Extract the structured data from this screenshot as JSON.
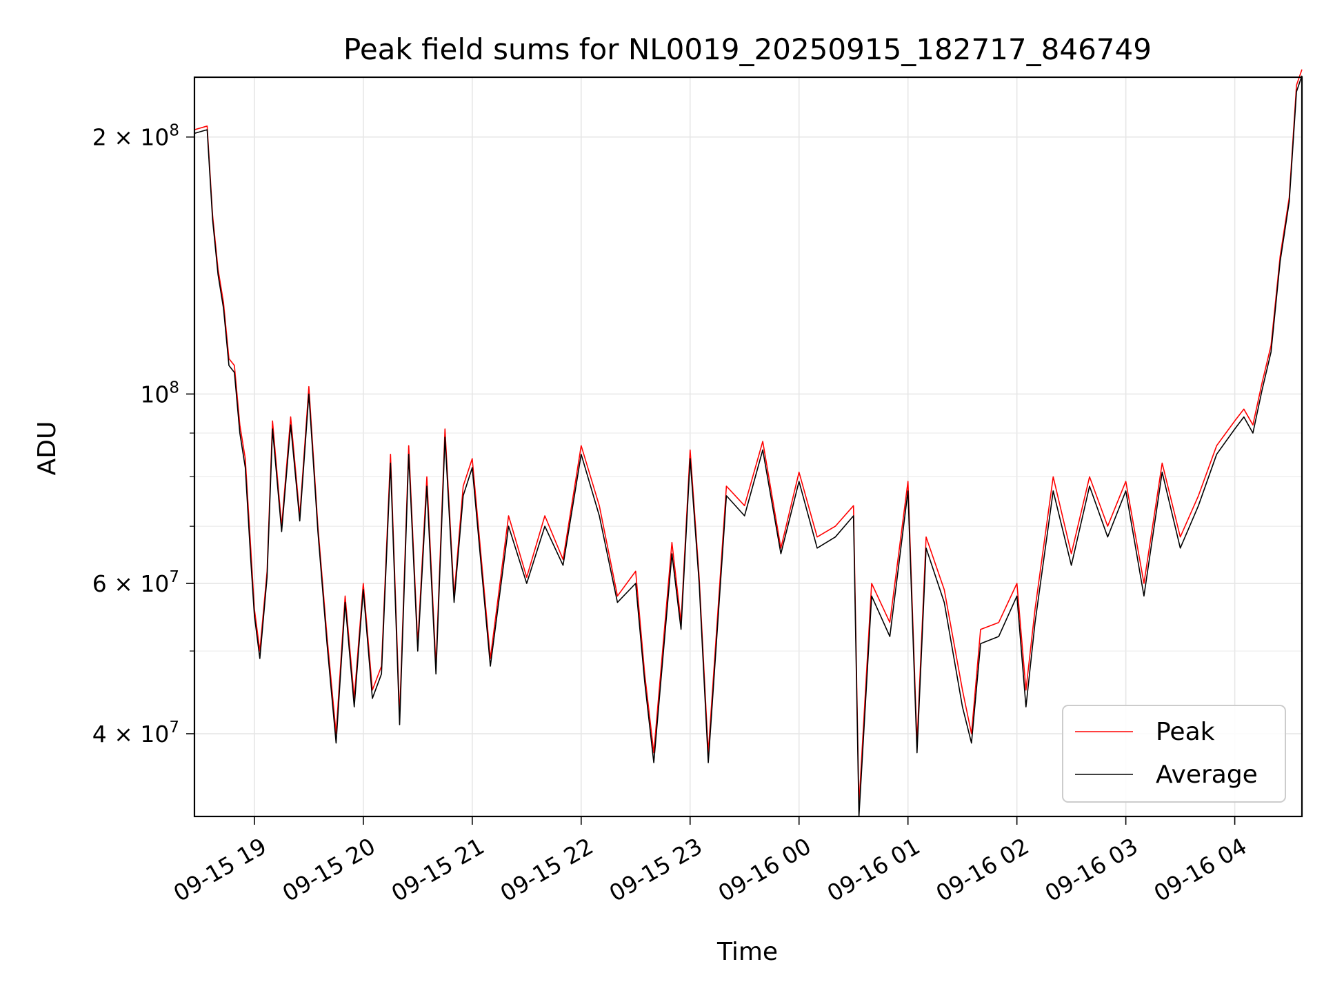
{
  "chart_data": {
    "type": "line",
    "title": "Peak field sums for NL0019_20250915_182717_846749",
    "xlabel": "Time",
    "ylabel": "ADU",
    "yscale": "log",
    "grid": true,
    "legend_position": "lower-right",
    "xlim": [
      "2025-09-15 18:27",
      "2025-09-16 04:37"
    ],
    "ylim": [
      32000000,
      235000000
    ],
    "x_ticks": [
      {
        "value": "2025-09-15 19:00",
        "label": "09-15 19"
      },
      {
        "value": "2025-09-15 20:00",
        "label": "09-15 20"
      },
      {
        "value": "2025-09-15 21:00",
        "label": "09-15 21"
      },
      {
        "value": "2025-09-15 22:00",
        "label": "09-15 22"
      },
      {
        "value": "2025-09-15 23:00",
        "label": "09-15 23"
      },
      {
        "value": "2025-09-16 00:00",
        "label": "09-16 00"
      },
      {
        "value": "2025-09-16 01:00",
        "label": "09-16 01"
      },
      {
        "value": "2025-09-16 02:00",
        "label": "09-16 02"
      },
      {
        "value": "2025-09-16 03:00",
        "label": "09-16 03"
      },
      {
        "value": "2025-09-16 04:00",
        "label": "09-16 04"
      }
    ],
    "y_ticks": [
      {
        "value": 40000000,
        "base": "4 × 10",
        "exp": "7"
      },
      {
        "value": 60000000,
        "base": "6 × 10",
        "exp": "7"
      },
      {
        "value": 100000000,
        "base": "10",
        "exp": "8"
      },
      {
        "value": 200000000,
        "base": "2 × 10",
        "exp": "8"
      }
    ],
    "y_minor_ticks": [
      50000000,
      70000000,
      80000000,
      90000000
    ],
    "series": [
      {
        "name": "Peak",
        "color": "#ff0000",
        "x": [
          "2025-09-15 18:27",
          "2025-09-15 18:34",
          "2025-09-15 18:37",
          "2025-09-15 18:40",
          "2025-09-15 18:43",
          "2025-09-15 18:46",
          "2025-09-15 18:49",
          "2025-09-15 18:52",
          "2025-09-15 18:55",
          "2025-09-15 18:58",
          "2025-09-15 19:00",
          "2025-09-15 19:03",
          "2025-09-15 19:07",
          "2025-09-15 19:10",
          "2025-09-15 19:15",
          "2025-09-15 19:20",
          "2025-09-15 19:25",
          "2025-09-15 19:30",
          "2025-09-15 19:35",
          "2025-09-15 19:40",
          "2025-09-15 19:45",
          "2025-09-15 19:50",
          "2025-09-15 19:55",
          "2025-09-15 20:00",
          "2025-09-15 20:05",
          "2025-09-15 20:10",
          "2025-09-15 20:15",
          "2025-09-15 20:20",
          "2025-09-15 20:25",
          "2025-09-15 20:30",
          "2025-09-15 20:35",
          "2025-09-15 20:40",
          "2025-09-15 20:45",
          "2025-09-15 20:50",
          "2025-09-15 20:55",
          "2025-09-15 21:00",
          "2025-09-15 21:10",
          "2025-09-15 21:20",
          "2025-09-15 21:30",
          "2025-09-15 21:40",
          "2025-09-15 21:50",
          "2025-09-15 22:00",
          "2025-09-15 22:10",
          "2025-09-15 22:20",
          "2025-09-15 22:30",
          "2025-09-15 22:35",
          "2025-09-15 22:40",
          "2025-09-15 22:50",
          "2025-09-15 22:55",
          "2025-09-15 23:00",
          "2025-09-15 23:05",
          "2025-09-15 23:10",
          "2025-09-15 23:20",
          "2025-09-15 23:30",
          "2025-09-15 23:40",
          "2025-09-15 23:50",
          "2025-09-16 00:00",
          "2025-09-16 00:10",
          "2025-09-16 00:20",
          "2025-09-16 00:30",
          "2025-09-16 00:33",
          "2025-09-16 00:40",
          "2025-09-16 00:50",
          "2025-09-16 01:00",
          "2025-09-16 01:05",
          "2025-09-16 01:10",
          "2025-09-16 01:20",
          "2025-09-16 01:30",
          "2025-09-16 01:35",
          "2025-09-16 01:40",
          "2025-09-16 01:50",
          "2025-09-16 02:00",
          "2025-09-16 02:05",
          "2025-09-16 02:10",
          "2025-09-16 02:20",
          "2025-09-16 02:30",
          "2025-09-16 02:40",
          "2025-09-16 02:50",
          "2025-09-16 03:00",
          "2025-09-16 03:10",
          "2025-09-16 03:20",
          "2025-09-16 03:30",
          "2025-09-16 03:40",
          "2025-09-16 03:50",
          "2025-09-16 04:00",
          "2025-09-16 04:05",
          "2025-09-16 04:10",
          "2025-09-16 04:15",
          "2025-09-16 04:20",
          "2025-09-16 04:25",
          "2025-09-16 04:30",
          "2025-09-16 04:34",
          "2025-09-16 04:37"
        ],
        "values": [
          204000000,
          206000000,
          162000000,
          140000000,
          128000000,
          110000000,
          108000000,
          92000000,
          84000000,
          66000000,
          56000000,
          50000000,
          62000000,
          93000000,
          70000000,
          94000000,
          72000000,
          102000000,
          70000000,
          52000000,
          40000000,
          58000000,
          44000000,
          60000000,
          45000000,
          48000000,
          85000000,
          42000000,
          87000000,
          51000000,
          80000000,
          48000000,
          91000000,
          58000000,
          78000000,
          84000000,
          49000000,
          72000000,
          61000000,
          72000000,
          64000000,
          87000000,
          74000000,
          58000000,
          62000000,
          47000000,
          38000000,
          67000000,
          54000000,
          86000000,
          61000000,
          38000000,
          78000000,
          74000000,
          88000000,
          66000000,
          81000000,
          68000000,
          70000000,
          74000000,
          33000000,
          60000000,
          54000000,
          79000000,
          39000000,
          68000000,
          59000000,
          45000000,
          40000000,
          53000000,
          54000000,
          60000000,
          45000000,
          56000000,
          80000000,
          65000000,
          80000000,
          70000000,
          79000000,
          60000000,
          83000000,
          68000000,
          76000000,
          87000000,
          93000000,
          96000000,
          92000000,
          103000000,
          114000000,
          145000000,
          170000000,
          230000000,
          240000000
        ]
      },
      {
        "name": "Average",
        "color": "#000000",
        "x": [
          "2025-09-15 18:27",
          "2025-09-15 18:34",
          "2025-09-15 18:37",
          "2025-09-15 18:40",
          "2025-09-15 18:43",
          "2025-09-15 18:46",
          "2025-09-15 18:49",
          "2025-09-15 18:52",
          "2025-09-15 18:55",
          "2025-09-15 18:58",
          "2025-09-15 19:00",
          "2025-09-15 19:03",
          "2025-09-15 19:07",
          "2025-09-15 19:10",
          "2025-09-15 19:15",
          "2025-09-15 19:20",
          "2025-09-15 19:25",
          "2025-09-15 19:30",
          "2025-09-15 19:35",
          "2025-09-15 19:40",
          "2025-09-15 19:45",
          "2025-09-15 19:50",
          "2025-09-15 19:55",
          "2025-09-15 20:00",
          "2025-09-15 20:05",
          "2025-09-15 20:10",
          "2025-09-15 20:15",
          "2025-09-15 20:20",
          "2025-09-15 20:25",
          "2025-09-15 20:30",
          "2025-09-15 20:35",
          "2025-09-15 20:40",
          "2025-09-15 20:45",
          "2025-09-15 20:50",
          "2025-09-15 20:55",
          "2025-09-15 21:00",
          "2025-09-15 21:10",
          "2025-09-15 21:20",
          "2025-09-15 21:30",
          "2025-09-15 21:40",
          "2025-09-15 21:50",
          "2025-09-15 22:00",
          "2025-09-15 22:10",
          "2025-09-15 22:20",
          "2025-09-15 22:30",
          "2025-09-15 22:35",
          "2025-09-15 22:40",
          "2025-09-15 22:50",
          "2025-09-15 22:55",
          "2025-09-15 23:00",
          "2025-09-15 23:05",
          "2025-09-15 23:10",
          "2025-09-15 23:20",
          "2025-09-15 23:30",
          "2025-09-15 23:40",
          "2025-09-15 23:50",
          "2025-09-16 00:00",
          "2025-09-16 00:10",
          "2025-09-16 00:20",
          "2025-09-16 00:30",
          "2025-09-16 00:33",
          "2025-09-16 00:40",
          "2025-09-16 00:50",
          "2025-09-16 01:00",
          "2025-09-16 01:05",
          "2025-09-16 01:10",
          "2025-09-16 01:20",
          "2025-09-16 01:30",
          "2025-09-16 01:35",
          "2025-09-16 01:40",
          "2025-09-16 01:50",
          "2025-09-16 02:00",
          "2025-09-16 02:05",
          "2025-09-16 02:10",
          "2025-09-16 02:20",
          "2025-09-16 02:30",
          "2025-09-16 02:40",
          "2025-09-16 02:50",
          "2025-09-16 03:00",
          "2025-09-16 03:10",
          "2025-09-16 03:20",
          "2025-09-16 03:30",
          "2025-09-16 03:40",
          "2025-09-16 03:50",
          "2025-09-16 04:00",
          "2025-09-16 04:05",
          "2025-09-16 04:10",
          "2025-09-16 04:15",
          "2025-09-16 04:20",
          "2025-09-16 04:25",
          "2025-09-16 04:30",
          "2025-09-16 04:34",
          "2025-09-16 04:37"
        ],
        "values": [
          202000000,
          204000000,
          160000000,
          138000000,
          126000000,
          108000000,
          106000000,
          90000000,
          82000000,
          64000000,
          55000000,
          49000000,
          61000000,
          91000000,
          69000000,
          92000000,
          71000000,
          100000000,
          69000000,
          51000000,
          39000000,
          57000000,
          43000000,
          59000000,
          44000000,
          47000000,
          83000000,
          41000000,
          85000000,
          50000000,
          78000000,
          47000000,
          89000000,
          57000000,
          76000000,
          82000000,
          48000000,
          70000000,
          60000000,
          70000000,
          63000000,
          85000000,
          72000000,
          57000000,
          60000000,
          46000000,
          37000000,
          65000000,
          53000000,
          84000000,
          60000000,
          37000000,
          76000000,
          72000000,
          86000000,
          65000000,
          79000000,
          66000000,
          68000000,
          72000000,
          32000000,
          58000000,
          52000000,
          77000000,
          38000000,
          66000000,
          57000000,
          43000000,
          39000000,
          51000000,
          52000000,
          58000000,
          43000000,
          54000000,
          77000000,
          63000000,
          78000000,
          68000000,
          77000000,
          58000000,
          81000000,
          66000000,
          74000000,
          85000000,
          91000000,
          94000000,
          90000000,
          101000000,
          112000000,
          143000000,
          168000000,
          226000000,
          236000000
        ]
      }
    ]
  }
}
